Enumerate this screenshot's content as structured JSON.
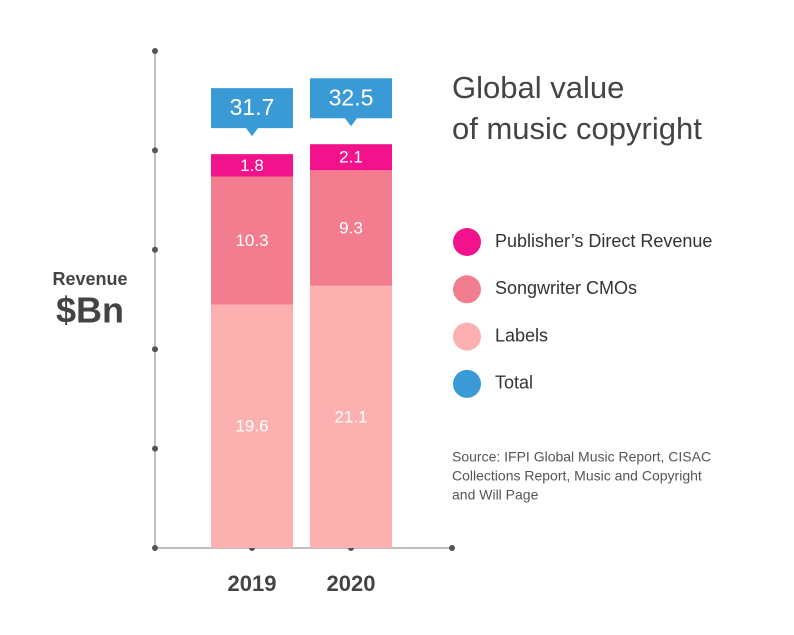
{
  "chart_data": {
    "type": "stacked-bar",
    "title": [
      "Global value",
      "of music copyright"
    ],
    "ylabel": "Revenue",
    "yunit": "$Bn",
    "categories": [
      "2019",
      "2020"
    ],
    "series": [
      {
        "name": "Labels",
        "color": "#fdb0b0",
        "values": [
          19.6,
          21.1
        ]
      },
      {
        "name": "Songwriter CMOs",
        "color": "#f27d8e",
        "values": [
          10.3,
          9.3
        ]
      },
      {
        "name": "Publisher’s Direct Revenue",
        "color": "#f2128c",
        "values": [
          1.8,
          2.1
        ]
      }
    ],
    "total": {
      "name": "Total",
      "color": "#3a9ad6",
      "values": [
        31.7,
        32.5
      ]
    },
    "ylim": [
      0,
      40
    ],
    "yticks": [
      0,
      8,
      16,
      24,
      32,
      40
    ],
    "source": [
      "Source: IFPI Global Music Report, CISAC",
      "Collections Report, Music and Copyright",
      "and Will Page"
    ]
  }
}
